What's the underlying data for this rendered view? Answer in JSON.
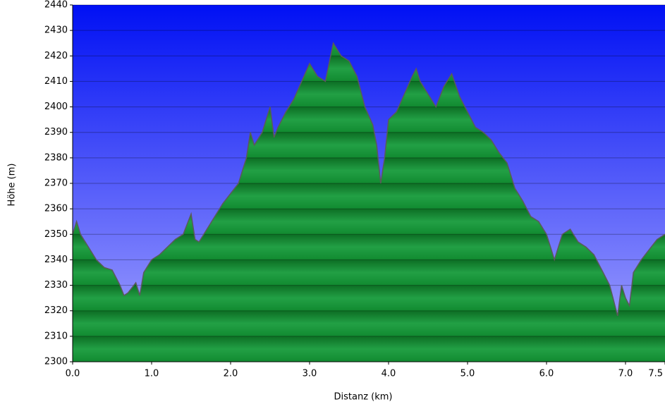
{
  "chart_data": {
    "type": "area",
    "xlabel": "Distanz   (km)",
    "ylabel": "Höhe (m)",
    "color": "#22a045",
    "x": [
      0,
      0.05,
      0.1,
      0.2,
      0.3,
      0.4,
      0.5,
      0.6,
      0.65,
      0.7,
      0.8,
      0.85,
      0.9,
      1.0,
      1.1,
      1.2,
      1.3,
      1.4,
      1.5,
      1.55,
      1.6,
      1.7,
      1.8,
      1.9,
      2.0,
      2.1,
      2.2,
      2.25,
      2.3,
      2.4,
      2.5,
      2.55,
      2.6,
      2.7,
      2.8,
      2.9,
      3.0,
      3.1,
      3.2,
      3.3,
      3.4,
      3.5,
      3.6,
      3.7,
      3.8,
      3.85,
      3.9,
      3.95,
      4.0,
      4.1,
      4.2,
      4.3,
      4.35,
      4.4,
      4.5,
      4.6,
      4.7,
      4.8,
      4.9,
      5.0,
      5.1,
      5.2,
      5.3,
      5.4,
      5.5,
      5.6,
      5.7,
      5.8,
      5.9,
      6.0,
      6.1,
      6.2,
      6.3,
      6.4,
      6.5,
      6.6,
      6.7,
      6.8,
      6.9,
      6.95,
      7.0,
      7.05,
      7.1,
      7.2,
      7.3,
      7.4,
      7.5
    ],
    "values": [
      2350,
      2355,
      2350,
      2345,
      2340,
      2337,
      2336,
      2330,
      2326,
      2327,
      2331,
      2326,
      2335,
      2340,
      2342,
      2345,
      2348,
      2350,
      2358,
      2348,
      2347,
      2352,
      2357,
      2362,
      2366,
      2370,
      2380,
      2390,
      2385,
      2390,
      2400,
      2388,
      2392,
      2398,
      2403,
      2410,
      2417,
      2412,
      2410,
      2425,
      2420,
      2418,
      2412,
      2400,
      2393,
      2385,
      2370,
      2380,
      2395,
      2398,
      2405,
      2412,
      2415,
      2410,
      2405,
      2400,
      2408,
      2413,
      2404,
      2398,
      2392,
      2390,
      2387,
      2382,
      2378,
      2368,
      2363,
      2357,
      2355,
      2350,
      2340,
      2350,
      2352,
      2347,
      2345,
      2342,
      2336,
      2330,
      2318,
      2330,
      2325,
      2322,
      2335,
      2340,
      2344,
      2348,
      2350
    ],
    "xlim": [
      0,
      7.5
    ],
    "xticks": [
      {
        "value": 0,
        "label": "0.0"
      },
      {
        "value": 1,
        "label": "1.0"
      },
      {
        "value": 2,
        "label": "2.0"
      },
      {
        "value": 3,
        "label": "3.0"
      },
      {
        "value": 4,
        "label": "4.0"
      },
      {
        "value": 5,
        "label": "5.0"
      },
      {
        "value": 6,
        "label": "6.0"
      },
      {
        "value": 7,
        "label": "7.0"
      },
      7.5
    ],
    "ylim": [
      2300,
      2440
    ],
    "yticks": [
      2300,
      2310,
      2320,
      2330,
      2340,
      2350,
      2360,
      2370,
      2380,
      2390,
      2400,
      2410,
      2420,
      2430,
      2440
    ],
    "grid": true
  }
}
